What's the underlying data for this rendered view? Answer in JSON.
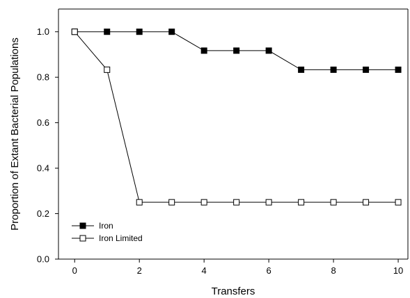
{
  "chart_data": {
    "type": "line",
    "xlabel": "Transfers",
    "ylabel": "Proportion of Extant Bacterial Populations",
    "xlim": [
      -0.5,
      10.3
    ],
    "ylim": [
      0,
      1.1
    ],
    "x_ticks": [
      0,
      2,
      4,
      6,
      8,
      10
    ],
    "x_tick_labels": [
      "0",
      "2",
      "4",
      "6",
      "8",
      "10"
    ],
    "y_ticks": [
      0,
      0.2,
      0.4,
      0.6,
      0.8,
      1.0
    ],
    "y_tick_labels": [
      "0.0",
      "0.2",
      "0.4",
      "0.6",
      "0.8",
      "1.0"
    ],
    "grid": false,
    "legend_position": "bottom-left",
    "x": [
      0,
      1,
      2,
      3,
      4,
      5,
      6,
      7,
      8,
      9,
      10
    ],
    "series": [
      {
        "name": "Iron",
        "marker": "filled-square",
        "color": "#000000",
        "values": [
          1.0,
          1.0,
          1.0,
          1.0,
          0.917,
          0.917,
          0.917,
          0.833,
          0.833,
          0.833,
          0.833
        ]
      },
      {
        "name": "Iron Limited",
        "marker": "open-square",
        "color": "#000000",
        "values": [
          1.0,
          0.833,
          0.25,
          0.25,
          0.25,
          0.25,
          0.25,
          0.25,
          0.25,
          0.25,
          0.25
        ]
      }
    ]
  }
}
